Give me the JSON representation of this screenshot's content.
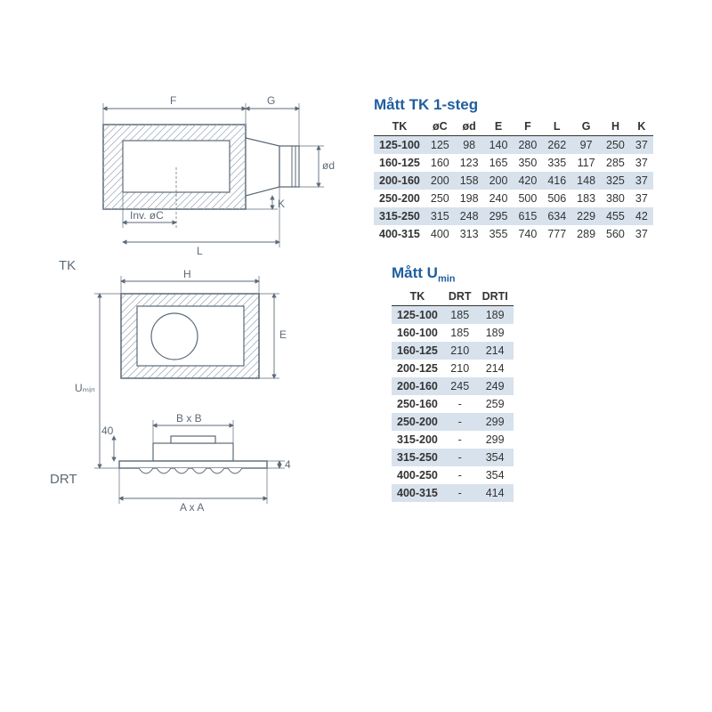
{
  "diagrams": {
    "section_labels": {
      "tk": "TK",
      "drt": "DRT"
    },
    "dims": {
      "F": "F",
      "G": "G",
      "od": "ød",
      "K": "K",
      "L": "L",
      "invC": "Inv. øC",
      "H": "H",
      "E": "E",
      "Umin": "Uₘᵢₙ",
      "BxB": "B x B",
      "AxA": "A x A",
      "forty": "40",
      "four": "4"
    },
    "stroke": "#5c6a78",
    "hatch": "#a8b3be"
  },
  "table1": {
    "title": "Mått TK 1-steg",
    "columns": [
      "TK",
      "øC",
      "ød",
      "E",
      "F",
      "L",
      "G",
      "H",
      "K"
    ],
    "rows": [
      [
        "125-100",
        "125",
        "98",
        "140",
        "280",
        "262",
        "97",
        "250",
        "37"
      ],
      [
        "160-125",
        "160",
        "123",
        "165",
        "350",
        "335",
        "117",
        "285",
        "37"
      ],
      [
        "200-160",
        "200",
        "158",
        "200",
        "420",
        "416",
        "148",
        "325",
        "37"
      ],
      [
        "250-200",
        "250",
        "198",
        "240",
        "500",
        "506",
        "183",
        "380",
        "37"
      ],
      [
        "315-250",
        "315",
        "248",
        "295",
        "615",
        "634",
        "229",
        "455",
        "42"
      ],
      [
        "400-315",
        "400",
        "313",
        "355",
        "740",
        "777",
        "289",
        "560",
        "37"
      ]
    ]
  },
  "table2": {
    "title_html": "Mått U<sub>min</sub>",
    "columns": [
      "TK",
      "DRT",
      "DRTI"
    ],
    "rows": [
      [
        "125-100",
        "185",
        "189"
      ],
      [
        "160-100",
        "185",
        "189"
      ],
      [
        "160-125",
        "210",
        "214"
      ],
      [
        "200-125",
        "210",
        "214"
      ],
      [
        "200-160",
        "245",
        "249"
      ],
      [
        "250-160",
        "-",
        "259"
      ],
      [
        "250-200",
        "-",
        "299"
      ],
      [
        "315-200",
        "-",
        "299"
      ],
      [
        "315-250",
        "-",
        "354"
      ],
      [
        "400-250",
        "-",
        "354"
      ],
      [
        "400-315",
        "-",
        "414"
      ]
    ]
  },
  "colors": {
    "title": "#1f5e9e",
    "zebra": "#d8e2ed",
    "text": "#333333",
    "diagram": "#5c6a78",
    "bg": "#ffffff"
  }
}
